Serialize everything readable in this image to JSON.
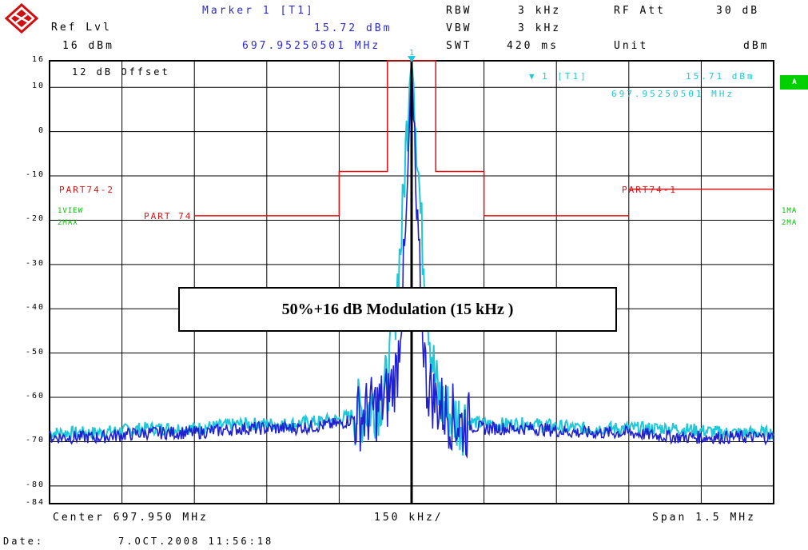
{
  "header": {
    "ref_lvl_label": "Ref Lvl",
    "ref_lvl_value": "16 dBm",
    "marker_title": "Marker 1 [T1]",
    "marker_level": "15.72 dBm",
    "marker_freq": "697.95250501 MHz",
    "rbw_label": "RBW",
    "rbw_value": "3 kHz",
    "vbw_label": "VBW",
    "vbw_value": "3 kHz",
    "swt_label": "SWT",
    "swt_value": "420 ms",
    "rfatt_label": "RF Att",
    "rfatt_value": "30 dB",
    "unit_label": "Unit",
    "unit_value": "dBm"
  },
  "plot": {
    "offset_label": "12 dB Offset",
    "marker_readout_id": "1 [T1]",
    "marker_readout_level": "15.71 dBm",
    "marker_readout_freq": "697.95250501 MHz",
    "marker_number": "1",
    "limit_labels": [
      "PART74-2",
      "PART 74",
      "PART74-1"
    ],
    "trace_labels_left": [
      "1VIEW",
      "2MAX"
    ],
    "trace_labels_right": [
      "1MA",
      "2MA"
    ],
    "badge": "A",
    "annotation": "50%+16 dB Modulation (15 kHz )"
  },
  "footer": {
    "center": "Center 697.950 MHz",
    "per_div": "150 kHz/",
    "span": "Span 1.5 MHz",
    "date_label": "Date:",
    "date_value": "7.OCT.2008 11:56:18"
  },
  "colors": {
    "trace_max": "#1ec8d8",
    "trace_view": "#2020d0",
    "limit": "#e01010",
    "grid": "#000000",
    "logo": "#d01010"
  },
  "chart_data": {
    "type": "line",
    "xlabel": "",
    "ylabel": "",
    "x_unit": "MHz",
    "y_unit": "dBm",
    "xlim": [
      697.2,
      698.7
    ],
    "ylim": [
      -84,
      16
    ],
    "y_ticks": [
      "16",
      "10",
      "0",
      "-10",
      "-20",
      "-30",
      "-40",
      "-50",
      "-60",
      "-70",
      "-80",
      "-84"
    ],
    "y_tick_values": [
      16,
      10,
      0,
      -10,
      -20,
      -30,
      -40,
      -50,
      -60,
      -70,
      -80,
      -84
    ],
    "grid": true,
    "limit_lines": [
      {
        "name": "PART74-1",
        "x": [
          698.4,
          698.7
        ],
        "y": [
          -13,
          -13
        ]
      },
      {
        "name": "PART 74",
        "x": [
          697.5,
          697.8,
          697.8,
          697.9,
          697.9,
          698.0,
          698.0,
          698.1,
          698.1,
          698.4
        ],
        "y": [
          -19,
          -19,
          -9,
          -9,
          16,
          16,
          -9,
          -9,
          -19,
          -19
        ]
      }
    ],
    "series": [
      {
        "name": "2MAX",
        "x": [
          697.2,
          697.3,
          697.4,
          697.5,
          697.6,
          697.7,
          697.8,
          697.85,
          697.88,
          697.9,
          697.91,
          697.92,
          697.93,
          697.935,
          697.94,
          697.945,
          697.95,
          697.955,
          697.96,
          697.965,
          697.97,
          697.98,
          697.99,
          698.0,
          698.01,
          698.02,
          698.05,
          698.1,
          698.2,
          698.3,
          698.4,
          698.5,
          698.6,
          698.7
        ],
        "y": [
          -68,
          -68,
          -67,
          -67,
          -66,
          -66,
          -65,
          -63,
          -61,
          -57,
          -48,
          -35,
          -22,
          -10,
          0,
          10,
          15.7,
          10,
          0,
          -10,
          -22,
          -35,
          -48,
          -57,
          -61,
          -63,
          -65,
          -66,
          -66,
          -67,
          -67,
          -67,
          -68,
          -68
        ]
      },
      {
        "name": "1VIEW",
        "x": [
          697.2,
          697.3,
          697.4,
          697.5,
          697.6,
          697.7,
          697.8,
          697.85,
          697.88,
          697.9,
          697.92,
          697.93,
          697.94,
          697.945,
          697.95,
          697.955,
          697.96,
          697.97,
          697.98,
          698.0,
          698.02,
          698.05,
          698.1,
          698.2,
          698.3,
          698.4,
          698.5,
          698.6,
          698.7
        ],
        "y": [
          -69,
          -69,
          -68,
          -68,
          -67,
          -67,
          -66,
          -64,
          -62,
          -60,
          -54,
          -38,
          -20,
          0,
          15.7,
          0,
          -20,
          -38,
          -56,
          -61,
          -63,
          -66,
          -67,
          -67,
          -68,
          -68,
          -69,
          -69,
          -69
        ]
      }
    ]
  }
}
